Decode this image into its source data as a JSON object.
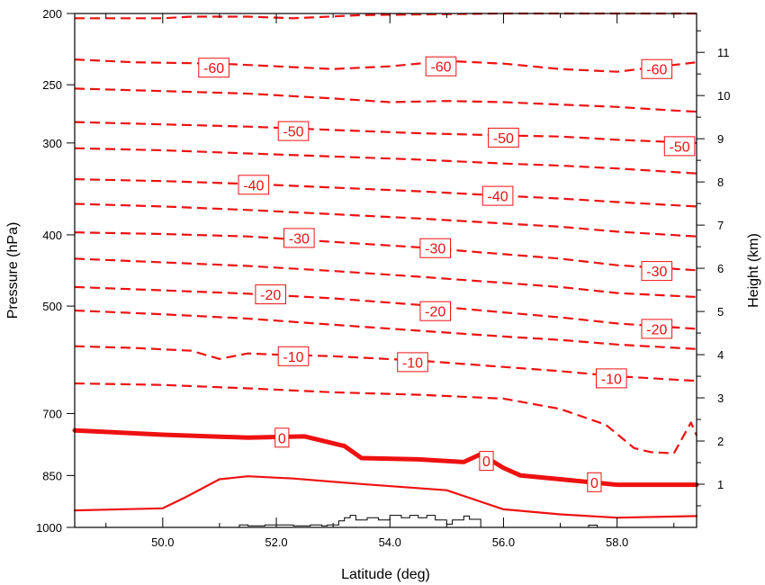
{
  "chart_data": {
    "type": "line",
    "title": "",
    "xlabel": "Latitude (deg)",
    "ylabel": "Pressure (hPa)",
    "y2label": "Height (km)",
    "xlim": [
      48.45,
      59.4
    ],
    "ylim_pressure": [
      200,
      1000
    ],
    "y_scale": "log",
    "ylim_height": [
      0,
      11.9
    ],
    "x_ticks": [
      50.0,
      52.0,
      54.0,
      56.0,
      58.0
    ],
    "x_tick_labels": [
      "50.0",
      "52.0",
      "54.0",
      "56.0",
      "58.0"
    ],
    "y_ticks": [
      200,
      250,
      300,
      400,
      500,
      700,
      850,
      1000
    ],
    "y_tick_labels": [
      "200",
      "250",
      "300",
      "400",
      "500",
      "700",
      "850",
      "1000"
    ],
    "y2_ticks": [
      1,
      2,
      3,
      4,
      5,
      6,
      7,
      8,
      9,
      10,
      11
    ],
    "y2_tick_labels": [
      "1",
      "2",
      "3",
      "4",
      "5",
      "6",
      "7",
      "8",
      "9",
      "10",
      "11"
    ],
    "contour_color": "#ee1111",
    "terrain_color": "#000000",
    "contours": [
      {
        "level": -65,
        "style": "dashed",
        "x": [
          48.45,
          49.0,
          50.0,
          50.5,
          51.5,
          52.3,
          53.5,
          56.0,
          59.4
        ],
        "p": [
          203,
          203,
          203,
          202,
          202,
          203,
          201,
          200,
          200
        ]
      },
      {
        "level": -60,
        "style": "dashed",
        "x": [
          48.45,
          49.5,
          51.0,
          52.0,
          53.0,
          54.0,
          55.0,
          56.0,
          57.0,
          58.0,
          59.0,
          59.4
        ],
        "p": [
          231,
          233,
          234,
          236,
          238,
          236,
          232,
          234,
          238,
          240,
          235,
          233
        ]
      },
      {
        "level": -55,
        "style": "dashed",
        "x": [
          48.45,
          50.0,
          51.5,
          53.0,
          54.0,
          55.0,
          56.0,
          57.0,
          58.0,
          59.0,
          59.4
        ],
        "p": [
          253,
          255,
          257,
          261,
          264,
          263,
          264,
          266,
          268,
          271,
          272
        ]
      },
      {
        "level": -50,
        "style": "dashed",
        "x": [
          48.45,
          50.0,
          51.5,
          53.0,
          54.5,
          56.0,
          57.0,
          58.0,
          59.4
        ],
        "p": [
          281,
          283,
          285,
          288,
          291,
          293,
          294,
          297,
          300
        ]
      },
      {
        "level": -45,
        "style": "dashed",
        "x": [
          48.45,
          50.0,
          51.5,
          53.0,
          54.5,
          56.0,
          57.0,
          58.0,
          59.4
        ],
        "p": [
          305,
          307,
          310,
          313,
          316,
          320,
          322,
          325,
          330
        ]
      },
      {
        "level": -40,
        "style": "dashed",
        "x": [
          48.45,
          50.0,
          51.5,
          53.0,
          54.5,
          56.0,
          57.0,
          58.0,
          59.4
        ],
        "p": [
          336,
          338,
          341,
          345,
          349,
          354,
          357,
          361,
          366
        ]
      },
      {
        "level": -35,
        "style": "dashed",
        "x": [
          48.45,
          50.0,
          51.5,
          53.0,
          54.5,
          56.0,
          57.0,
          58.0,
          59.4
        ],
        "p": [
          363,
          366,
          370,
          375,
          380,
          386,
          390,
          396,
          402
        ]
      },
      {
        "level": -30,
        "style": "dashed",
        "x": [
          48.45,
          50.0,
          51.5,
          53.0,
          54.5,
          56.0,
          57.0,
          58.0,
          59.4
        ],
        "p": [
          397,
          399,
          402,
          409,
          416,
          425,
          431,
          440,
          447
        ]
      },
      {
        "level": -25,
        "style": "dashed",
        "x": [
          48.45,
          50.0,
          51.5,
          53.0,
          54.5,
          56.0,
          57.0,
          58.0,
          59.4
        ],
        "p": [
          431,
          436,
          441,
          448,
          456,
          465,
          471,
          480,
          486
        ]
      },
      {
        "level": -20,
        "style": "dashed",
        "x": [
          48.45,
          50.0,
          51.5,
          53.0,
          54.5,
          56.0,
          57.0,
          58.0,
          59.4
        ],
        "p": [
          471,
          476,
          481,
          488,
          498,
          510,
          518,
          528,
          537
        ]
      },
      {
        "level": -15,
        "style": "dashed",
        "x": [
          48.45,
          50.0,
          51.5,
          53.0,
          54.5,
          56.0,
          57.0,
          58.0,
          59.4
        ],
        "p": [
          507,
          513,
          520,
          530,
          540,
          550,
          556,
          564,
          572
        ]
      },
      {
        "level": -10,
        "style": "dashed",
        "x": [
          48.45,
          49.5,
          50.5,
          51.0,
          51.5,
          52.0,
          53.0,
          54.5,
          56.0,
          57.0,
          58.0,
          59.4
        ],
        "p": [
          567,
          570,
          575,
          590,
          580,
          582,
          585,
          593,
          605,
          613,
          623,
          632
        ]
      },
      {
        "level": -5,
        "style": "dashed",
        "x": [
          48.45,
          50.0,
          51.5,
          53.0,
          54.5,
          56.0,
          57.0,
          57.8,
          58.3,
          58.6,
          59.0,
          59.3,
          59.4
        ],
        "p": [
          637,
          640,
          647,
          655,
          660,
          668,
          690,
          725,
          780,
          790,
          793,
          720,
          750
        ]
      },
      {
        "level": 0,
        "style": "bold",
        "x": [
          48.45,
          50.0,
          51.5,
          52.5,
          53.2,
          53.5,
          54.5,
          55.3,
          55.6,
          56.0,
          56.3,
          57.0,
          58.0,
          59.4
        ],
        "p": [
          738,
          748,
          755,
          752,
          775,
          805,
          808,
          815,
          795,
          830,
          850,
          860,
          875,
          875
        ]
      },
      {
        "level": 5,
        "style": "solid",
        "x": [
          48.45,
          50.0,
          50.4,
          51.0,
          51.5,
          52.3,
          53.5,
          55.0,
          56.0,
          57.0,
          58.0,
          59.4
        ],
        "p": [
          948,
          942,
          910,
          860,
          852,
          858,
          873,
          890,
          945,
          960,
          970,
          965
        ]
      }
    ],
    "contour_labels": [
      {
        "text": "-60",
        "x": 50.9,
        "p": 237
      },
      {
        "text": "-60",
        "x": 54.9,
        "p": 236
      },
      {
        "text": "-60",
        "x": 58.7,
        "p": 238
      },
      {
        "text": "-50",
        "x": 52.3,
        "p": 289
      },
      {
        "text": "-50",
        "x": 56.0,
        "p": 295
      },
      {
        "text": "-50",
        "x": 59.1,
        "p": 303
      },
      {
        "text": "-40",
        "x": 51.6,
        "p": 342
      },
      {
        "text": "-40",
        "x": 55.9,
        "p": 354
      },
      {
        "text": "-30",
        "x": 52.4,
        "p": 404
      },
      {
        "text": "-30",
        "x": 54.8,
        "p": 417
      },
      {
        "text": "-30",
        "x": 58.7,
        "p": 448
      },
      {
        "text": "-20",
        "x": 51.9,
        "p": 482
      },
      {
        "text": "-20",
        "x": 54.8,
        "p": 508
      },
      {
        "text": "-20",
        "x": 58.7,
        "p": 537
      },
      {
        "text": "-10",
        "x": 52.3,
        "p": 585
      },
      {
        "text": "-10",
        "x": 54.4,
        "p": 596
      },
      {
        "text": "-10",
        "x": 57.9,
        "p": 627
      },
      {
        "text": "0",
        "x": 52.1,
        "p": 755
      },
      {
        "text": "0",
        "x": 55.7,
        "p": 812
      },
      {
        "text": "0",
        "x": 57.6,
        "p": 868
      }
    ],
    "terrain": {
      "x": [
        51.35,
        51.35,
        51.5,
        51.5,
        51.8,
        51.8,
        52.3,
        52.3,
        52.6,
        52.6,
        52.8,
        52.8,
        52.9,
        52.9,
        53.1,
        53.1,
        53.2,
        53.2,
        53.3,
        53.3,
        53.4,
        53.4,
        53.6,
        53.6,
        53.8,
        53.8,
        54.0,
        54.0,
        54.2,
        54.2,
        54.35,
        54.35,
        54.5,
        54.5,
        54.65,
        54.65,
        54.8,
        54.8,
        55.0,
        55.0,
        55.1,
        55.1,
        55.3,
        55.3,
        55.4,
        55.4,
        55.6,
        55.6,
        57.5,
        57.5,
        57.65,
        57.65
      ],
      "p": [
        1000,
        992,
        992,
        995,
        995,
        992,
        992,
        995,
        995,
        992,
        992,
        995,
        995,
        992,
        992,
        980,
        980,
        970,
        970,
        963,
        963,
        977,
        977,
        970,
        970,
        977,
        977,
        963,
        963,
        970,
        970,
        963,
        963,
        970,
        970,
        963,
        963,
        977,
        977,
        990,
        990,
        977,
        977,
        965,
        965,
        975,
        975,
        1000,
        1000,
        993,
        993,
        1000
      ]
    }
  }
}
